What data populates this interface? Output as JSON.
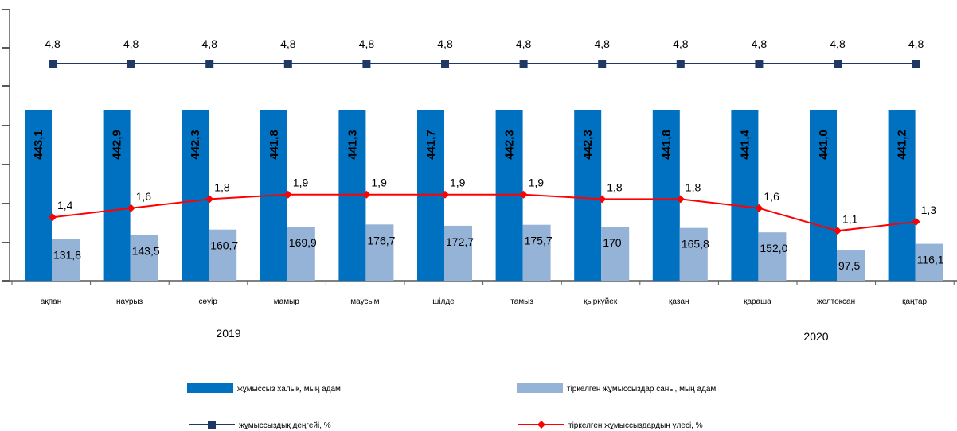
{
  "chart_data": {
    "type": "bar",
    "categories": [
      "ақпан",
      "наурыз",
      "сәуір",
      "мамыр",
      "маусым",
      "шілде",
      "тамыз",
      "қыркүйек",
      "қазан",
      "қараша",
      "желтоқсан",
      "қаңтар"
    ],
    "year_labels": [
      "2019",
      "2020"
    ],
    "series": [
      {
        "name": "жұмыссыз халық, мың адам",
        "kind": "bar",
        "color": "#0070c0",
        "values": [
          443.1,
          442.9,
          442.3,
          441.8,
          441.3,
          441.7,
          442.3,
          442.3,
          441.8,
          441.4,
          441.0,
          441.2
        ],
        "labels": [
          "443,1",
          "442,9",
          "442,3",
          "441,8",
          "441,3",
          "441,7",
          "442,3",
          "442,3",
          "441,8",
          "441,4",
          "441,0",
          "441,2"
        ]
      },
      {
        "name": "тіркелген жұмыссыздар саны, мың адам",
        "kind": "bar",
        "color": "#95b3d7",
        "values": [
          131.8,
          143.5,
          160.7,
          169.9,
          176.7,
          172.7,
          175.7,
          170,
          165.8,
          152.0,
          97.5,
          116.1
        ],
        "labels": [
          "131,8",
          "143,5",
          "160,7",
          "169,9",
          "176,7",
          "172,7",
          "175,7",
          "170",
          "165,8",
          "152,0",
          "97,5",
          "116,1"
        ]
      },
      {
        "name": "жұмыссыздық деңгейі, %",
        "kind": "line",
        "color": "#1f3864",
        "values": [
          4.8,
          4.8,
          4.8,
          4.8,
          4.8,
          4.8,
          4.8,
          4.8,
          4.8,
          4.8,
          4.8,
          4.8
        ],
        "labels": [
          "4,8",
          "4,8",
          "4,8",
          "4,8",
          "4,8",
          "4,8",
          "4,8",
          "4,8",
          "4,8",
          "4,8",
          "4,8",
          "4,8"
        ]
      },
      {
        "name": "тіркелген жұмыссыздардың үлесі, %",
        "kind": "line",
        "color": "#ff0000",
        "values": [
          1.4,
          1.6,
          1.8,
          1.9,
          1.9,
          1.9,
          1.9,
          1.8,
          1.8,
          1.6,
          1.1,
          1.3
        ],
        "labels": [
          "1,4",
          "1,6",
          "1,8",
          "1,9",
          "1,9",
          "1,9",
          "1,9",
          "1,8",
          "1,8",
          "1,6",
          "1,1",
          "1,3"
        ]
      }
    ],
    "legend_position": "bottom",
    "grid": false
  }
}
